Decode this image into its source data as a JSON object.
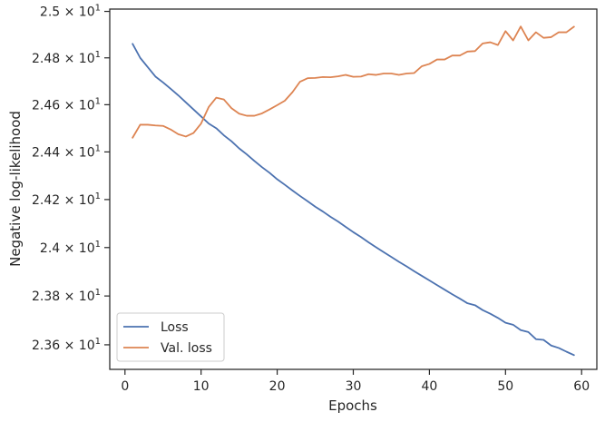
{
  "chart_data": {
    "type": "line",
    "xlabel": "Epochs",
    "ylabel": "Negative log-likelihood",
    "xlim": [
      -2,
      62
    ],
    "ylim": [
      23.5,
      25.01
    ],
    "y_scale": "log",
    "grid": false,
    "legend_position": "lower-left",
    "x_ticks": [
      0,
      10,
      20,
      30,
      40,
      50,
      60
    ],
    "x_tick_labels": [
      "0",
      "10",
      "20",
      "30",
      "40",
      "50",
      "60"
    ],
    "y_ticks": [
      23.6,
      23.8,
      24.0,
      24.2,
      24.4,
      24.6,
      24.8,
      25.0
    ],
    "y_tick_labels": [
      {
        "base": "2.36",
        "mult": " × 10",
        "exp": "1"
      },
      {
        "base": "2.38",
        "mult": " × 10",
        "exp": "1"
      },
      {
        "base": "2.4",
        "mult": " × 10",
        "exp": "1"
      },
      {
        "base": "2.42",
        "mult": " × 10",
        "exp": "1"
      },
      {
        "base": "2.44",
        "mult": " × 10",
        "exp": "1"
      },
      {
        "base": "2.46",
        "mult": " × 10",
        "exp": "1"
      },
      {
        "base": "2.48",
        "mult": " × 10",
        "exp": "1"
      },
      {
        "base": "2.5",
        "mult": " × 10",
        "exp": "1"
      }
    ],
    "x": [
      1,
      2,
      3,
      4,
      5,
      6,
      7,
      8,
      9,
      10,
      11,
      12,
      13,
      14,
      15,
      16,
      17,
      18,
      19,
      20,
      21,
      22,
      23,
      24,
      25,
      26,
      27,
      28,
      29,
      30,
      31,
      32,
      33,
      34,
      35,
      36,
      37,
      38,
      39,
      40,
      41,
      42,
      43,
      44,
      45,
      46,
      47,
      48,
      49,
      50,
      51,
      52,
      53,
      54,
      55,
      56,
      57,
      58,
      59
    ],
    "series": [
      {
        "name": "Loss",
        "color": "#4c72b0",
        "values": [
          24.86,
          24.8,
          24.76,
          24.72,
          24.695,
          24.668,
          24.64,
          24.61,
          24.58,
          24.55,
          24.52,
          24.5,
          24.47,
          24.445,
          24.415,
          24.39,
          24.362,
          24.336,
          24.312,
          24.285,
          24.262,
          24.238,
          24.215,
          24.193,
          24.17,
          24.15,
          24.128,
          24.108,
          24.086,
          24.064,
          24.044,
          24.022,
          24.001,
          23.981,
          23.961,
          23.941,
          23.922,
          23.902,
          23.883,
          23.864,
          23.845,
          23.826,
          23.807,
          23.789,
          23.77,
          23.762,
          23.742,
          23.727,
          23.71,
          23.69,
          23.682,
          23.66,
          23.652,
          23.623,
          23.62,
          23.597,
          23.587,
          23.572,
          23.558
        ]
      },
      {
        "name": "Val. loss",
        "color": "#dd8452",
        "values": [
          24.46,
          24.515,
          24.515,
          24.512,
          24.51,
          24.495,
          24.475,
          24.465,
          24.48,
          24.52,
          24.59,
          24.63,
          24.622,
          24.585,
          24.562,
          24.553,
          24.553,
          24.563,
          24.58,
          24.598,
          24.617,
          24.653,
          24.698,
          24.713,
          24.714,
          24.718,
          24.717,
          24.721,
          24.727,
          24.719,
          24.72,
          24.73,
          24.727,
          24.733,
          24.733,
          24.727,
          24.733,
          24.735,
          24.764,
          24.774,
          24.793,
          24.793,
          24.81,
          24.81,
          24.827,
          24.829,
          24.862,
          24.867,
          24.855,
          24.915,
          24.875,
          24.935,
          24.875,
          24.91,
          24.886,
          24.889,
          24.91,
          24.91,
          24.934
        ]
      }
    ]
  }
}
